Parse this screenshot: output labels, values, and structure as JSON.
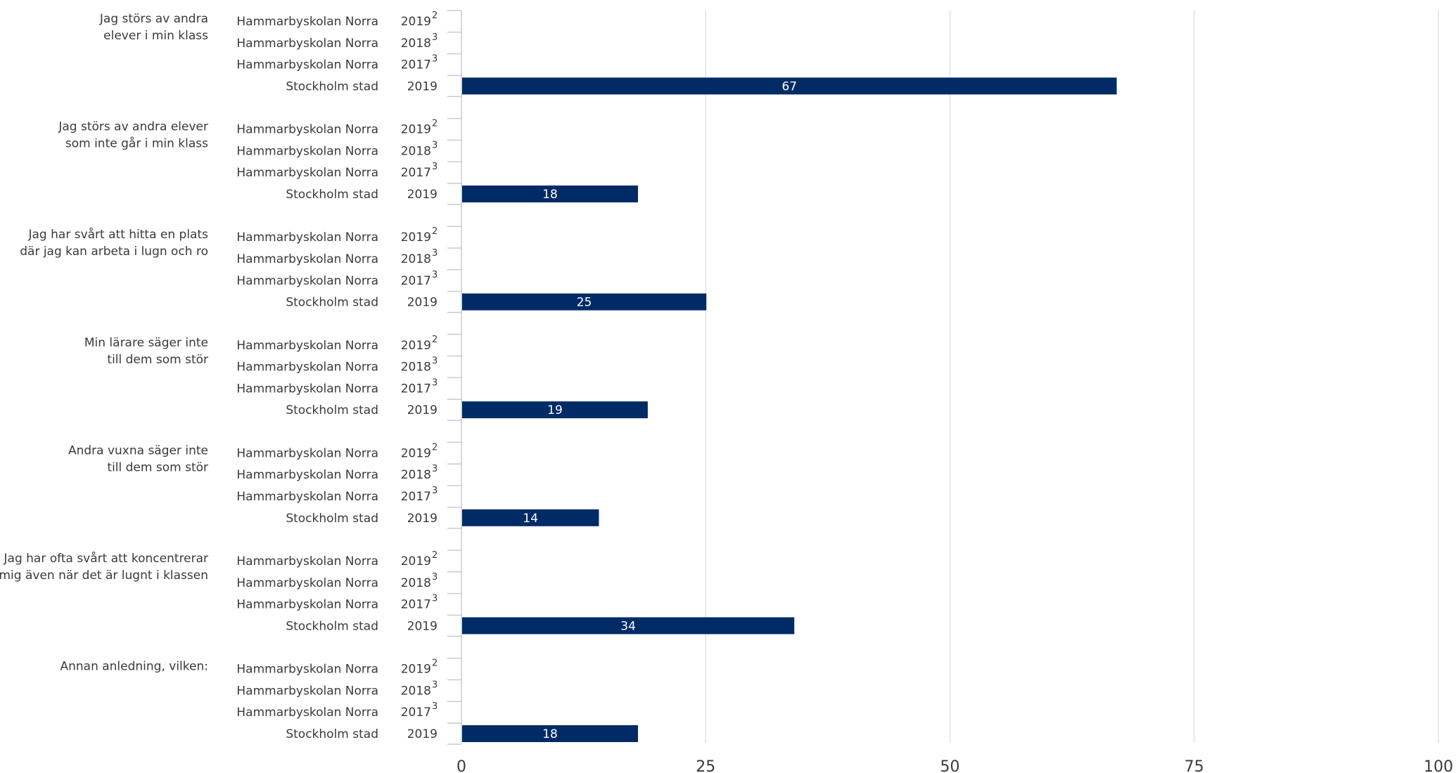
{
  "chart_data": {
    "type": "bar",
    "orientation": "horizontal",
    "xlim": [
      0,
      100
    ],
    "xticks": [
      "0",
      "25",
      "50",
      "75",
      "100"
    ],
    "grid": true,
    "bar_color": "#002b66",
    "groups": [
      {
        "label_lines": [
          "Jag störs av andra",
          "elever i min klass"
        ],
        "rows": [
          {
            "name": "Hammarbyskolan Norra",
            "year": "2019",
            "note": "2",
            "value": null
          },
          {
            "name": "Hammarbyskolan Norra",
            "year": "2018",
            "note": "3",
            "value": null
          },
          {
            "name": "Hammarbyskolan Norra",
            "year": "2017",
            "note": "3",
            "value": null
          },
          {
            "name": "Stockholm stad",
            "year": "2019",
            "note": "",
            "value": 67
          }
        ]
      },
      {
        "label_lines": [
          "Jag störs av andra elever",
          "som inte går i min klass"
        ],
        "rows": [
          {
            "name": "Hammarbyskolan Norra",
            "year": "2019",
            "note": "2",
            "value": null
          },
          {
            "name": "Hammarbyskolan Norra",
            "year": "2018",
            "note": "3",
            "value": null
          },
          {
            "name": "Hammarbyskolan Norra",
            "year": "2017",
            "note": "3",
            "value": null
          },
          {
            "name": "Stockholm stad",
            "year": "2019",
            "note": "",
            "value": 18
          }
        ]
      },
      {
        "label_lines": [
          "Jag har svårt att hitta en plats",
          "där jag kan arbeta i lugn och ro"
        ],
        "rows": [
          {
            "name": "Hammarbyskolan Norra",
            "year": "2019",
            "note": "2",
            "value": null
          },
          {
            "name": "Hammarbyskolan Norra",
            "year": "2018",
            "note": "3",
            "value": null
          },
          {
            "name": "Hammarbyskolan Norra",
            "year": "2017",
            "note": "3",
            "value": null
          },
          {
            "name": "Stockholm stad",
            "year": "2019",
            "note": "",
            "value": 25
          }
        ]
      },
      {
        "label_lines": [
          "Min lärare säger inte",
          "till dem som stör"
        ],
        "rows": [
          {
            "name": "Hammarbyskolan Norra",
            "year": "2019",
            "note": "2",
            "value": null
          },
          {
            "name": "Hammarbyskolan Norra",
            "year": "2018",
            "note": "3",
            "value": null
          },
          {
            "name": "Hammarbyskolan Norra",
            "year": "2017",
            "note": "3",
            "value": null
          },
          {
            "name": "Stockholm stad",
            "year": "2019",
            "note": "",
            "value": 19
          }
        ]
      },
      {
        "label_lines": [
          "Andra vuxna säger inte",
          "till dem som stör"
        ],
        "rows": [
          {
            "name": "Hammarbyskolan Norra",
            "year": "2019",
            "note": "2",
            "value": null
          },
          {
            "name": "Hammarbyskolan Norra",
            "year": "2018",
            "note": "3",
            "value": null
          },
          {
            "name": "Hammarbyskolan Norra",
            "year": "2017",
            "note": "3",
            "value": null
          },
          {
            "name": "Stockholm stad",
            "year": "2019",
            "note": "",
            "value": 14
          }
        ]
      },
      {
        "label_lines": [
          "Jag har ofta svårt att koncentrerar",
          "mig även när det är lugnt i klassen"
        ],
        "rows": [
          {
            "name": "Hammarbyskolan Norra",
            "year": "2019",
            "note": "2",
            "value": null
          },
          {
            "name": "Hammarbyskolan Norra",
            "year": "2018",
            "note": "3",
            "value": null
          },
          {
            "name": "Hammarbyskolan Norra",
            "year": "2017",
            "note": "3",
            "value": null
          },
          {
            "name": "Stockholm stad",
            "year": "2019",
            "note": "",
            "value": 34
          }
        ]
      },
      {
        "label_lines": [
          "Annan anledning, vilken:"
        ],
        "rows": [
          {
            "name": "Hammarbyskolan Norra",
            "year": "2019",
            "note": "2",
            "value": null
          },
          {
            "name": "Hammarbyskolan Norra",
            "year": "2018",
            "note": "3",
            "value": null
          },
          {
            "name": "Hammarbyskolan Norra",
            "year": "2017",
            "note": "3",
            "value": null
          },
          {
            "name": "Stockholm stad",
            "year": "2019",
            "note": "",
            "value": 18
          }
        ]
      }
    ]
  }
}
